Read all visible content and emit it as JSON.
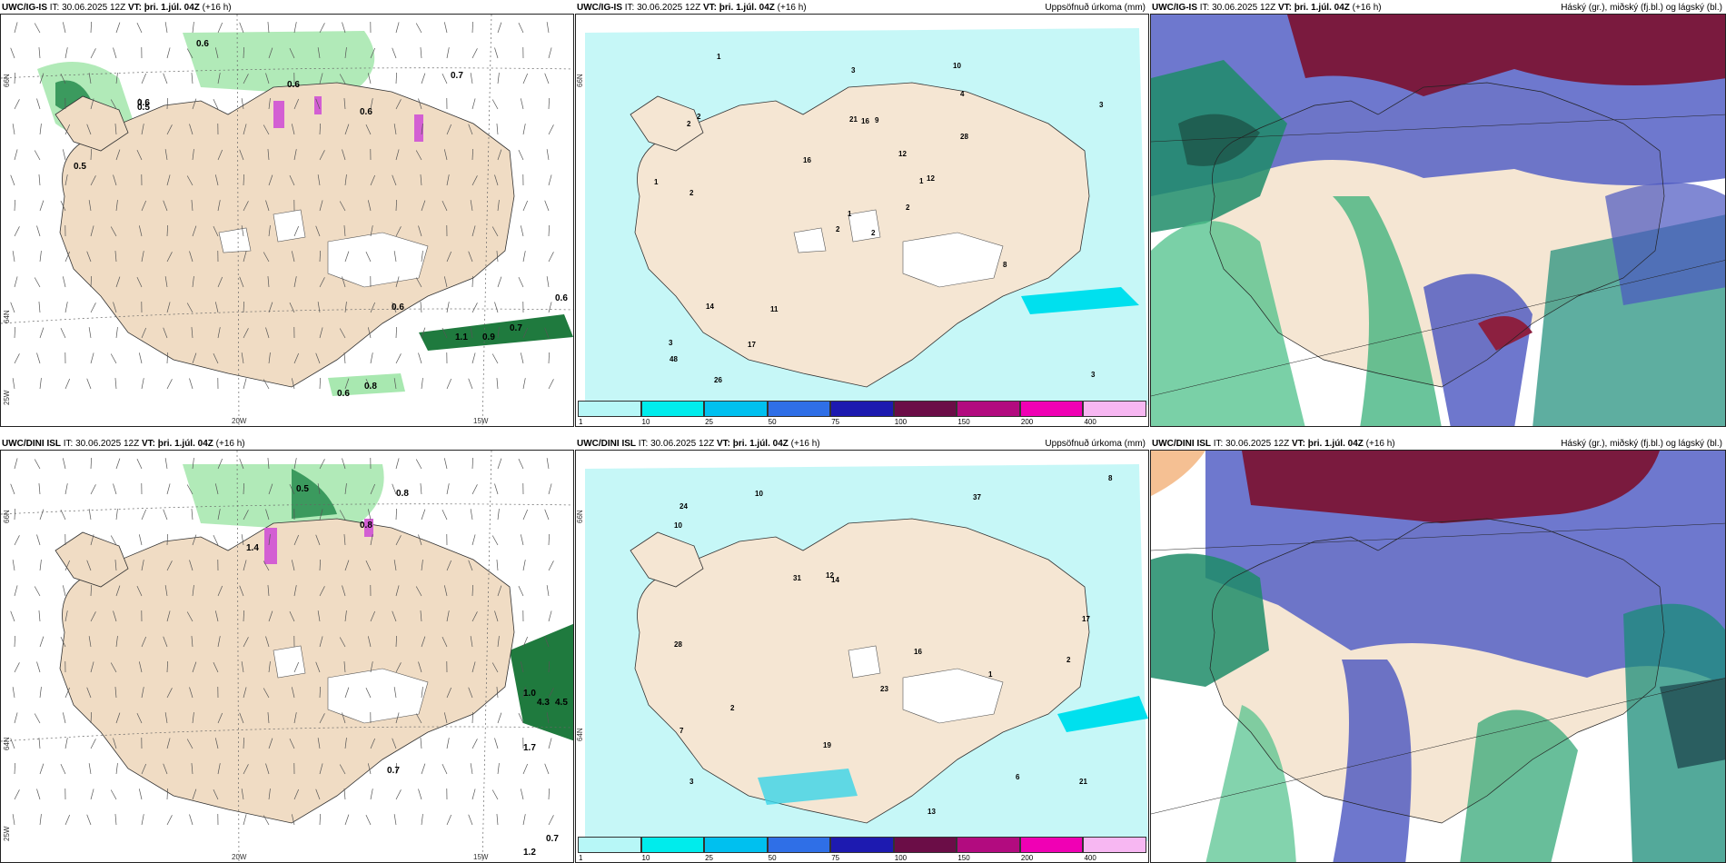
{
  "panels": [
    {
      "id": "p1",
      "model": "UWC/IG-IS",
      "info": " IT: 30.06.2025 12Z ",
      "vt_label": "VT:",
      "vt": "þri. 1.júl. 04Z",
      "lead": " (+16 h)",
      "right_title": "",
      "lat_labels": [
        "66N",
        "64N",
        "25W"
      ],
      "lon_labels": [
        "20W",
        "15W"
      ],
      "values": [
        "0.6",
        "0.5",
        "0.6",
        "0.5",
        "0.6",
        "0.7",
        "0.6",
        "0.6",
        "0.7",
        "1.1",
        "0.9",
        "0.6",
        "0.8",
        "0.6"
      ]
    },
    {
      "id": "p2",
      "model": "UWC/IG-IS",
      "info": " IT: 30.06.2025 12Z ",
      "vt_label": "VT:",
      "vt": "þri. 1.júl. 04Z",
      "lead": " (+16 h)",
      "right_title": "Uppsöfnuð úrkoma (mm)",
      "lat_labels": [
        "66N"
      ],
      "lon_labels": [],
      "values": [
        "2",
        "2",
        "1",
        "3",
        "1",
        "11",
        "10",
        "9",
        "4",
        "2",
        "1",
        "3",
        "2",
        "3",
        "2",
        "28",
        "26",
        "21",
        "12",
        "14",
        "16",
        "48",
        "17",
        "16",
        "12",
        "8",
        "2",
        "3",
        "1"
      ]
    },
    {
      "id": "p3",
      "model": "UWC/IG-IS",
      "info": " IT: 30.06.2025 12Z ",
      "vt_label": "VT:",
      "vt": "þri. 1.júl. 04Z",
      "lead": " (+16 h)",
      "right_title": "Háský (gr.), miðský (fj.bl.) og lágský (bl.)",
      "lat_labels": [],
      "lon_labels": [],
      "values": []
    },
    {
      "id": "p4",
      "model": "UWC/DINI ISL",
      "info": " IT: 30.06.2025 12Z ",
      "vt_label": "VT:",
      "vt": "þri. 1.júl. 04Z",
      "lead": " (+16 h)",
      "right_title": "",
      "lat_labels": [
        "66N",
        "64N",
        "25W"
      ],
      "lon_labels": [
        "20W",
        "15W"
      ],
      "values": [
        "0.5",
        "0.8",
        "0.8",
        "1.4",
        "4.3",
        "4.5",
        "1.0",
        "1.7",
        "0.7",
        "0.7",
        "1.2"
      ]
    },
    {
      "id": "p5",
      "model": "UWC/DINI ISL",
      "info": " IT: 30.06.2025 12Z ",
      "vt_label": "VT:",
      "vt": "þri. 1.júl. 04Z",
      "lead": " (+16 h)",
      "right_title": "Uppsöfnuð úrkoma (mm)",
      "lat_labels": [
        "66N",
        "64N"
      ],
      "lon_labels": [],
      "values": [
        "1",
        "2",
        "3",
        "10",
        "14",
        "6",
        "7",
        "37",
        "31",
        "13",
        "10",
        "28",
        "24",
        "21",
        "19",
        "17",
        "23",
        "16",
        "12",
        "2",
        "8"
      ]
    },
    {
      "id": "p6",
      "model": "UWC/DINI ISL",
      "info": " IT: 30.06.2025 12Z ",
      "vt_label": "VT:",
      "vt": "þri. 1.júl. 04Z",
      "lead": " (+16 h)",
      "right_title": "Háský (gr.), miðský (fj.bl.) og lágský (bl.)",
      "lat_labels": [],
      "lon_labels": [],
      "values": []
    }
  ],
  "colorbar": {
    "labels": [
      "1",
      "10",
      "25",
      "50",
      "75",
      "100",
      "150",
      "200",
      "400"
    ],
    "colors": [
      "#b7f7f7",
      "#00ecec",
      "#00c0ef",
      "#2f6fe7",
      "#1d1ab0",
      "#6b0d47",
      "#b20b7f",
      "#f000b4",
      "#f7b7f2"
    ]
  },
  "colors": {
    "land": "#f5e6d3",
    "sea": "#ffffff",
    "precip_light": "#9de8c0",
    "precip_mid": "#3a9a5c",
    "precip_dark": "#135e2c",
    "snow": "#d060d0",
    "cyan_light": "#aaf7f7",
    "cyan": "#00e5ee",
    "high_cloud": "#7e1c3c",
    "mid_cloud": "#4a55c0",
    "low_cloud": "#1aa872"
  }
}
